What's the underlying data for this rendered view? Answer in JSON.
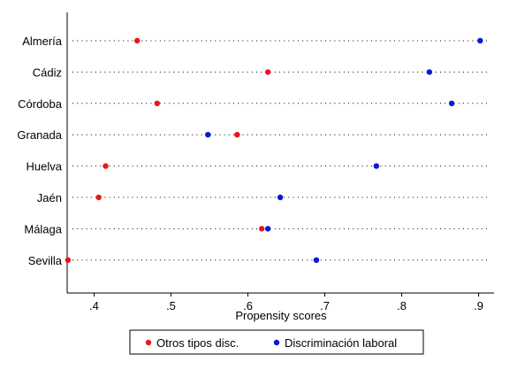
{
  "chart_data": {
    "type": "scatter",
    "title": "",
    "xlabel": "Propensity scores",
    "ylabel": "",
    "xlim": [
      0.365,
      0.92
    ],
    "x_ticks": [
      0.4,
      0.5,
      0.6,
      0.7,
      0.8,
      0.9
    ],
    "x_tick_labels": [
      ".4",
      ".5",
      ".6",
      ".7",
      ".8",
      ".9"
    ],
    "categories": [
      "Almería",
      "Cádiz",
      "Córdoba",
      "Granada",
      "Huelva",
      "Jaén",
      "Málaga",
      "Sevilla"
    ],
    "grid": "dotted horizontal lines per category",
    "legend_position": "bottom",
    "series": [
      {
        "name": "Otros tipos disc.",
        "color": "#e8171b",
        "values": [
          0.456,
          0.626,
          0.482,
          0.586,
          0.415,
          0.406,
          0.618,
          0.366
        ]
      },
      {
        "name": "Discriminación laboral",
        "color": "#0a18d9",
        "values": [
          0.902,
          0.836,
          0.865,
          0.548,
          0.767,
          0.642,
          0.626,
          0.689
        ]
      }
    ]
  }
}
